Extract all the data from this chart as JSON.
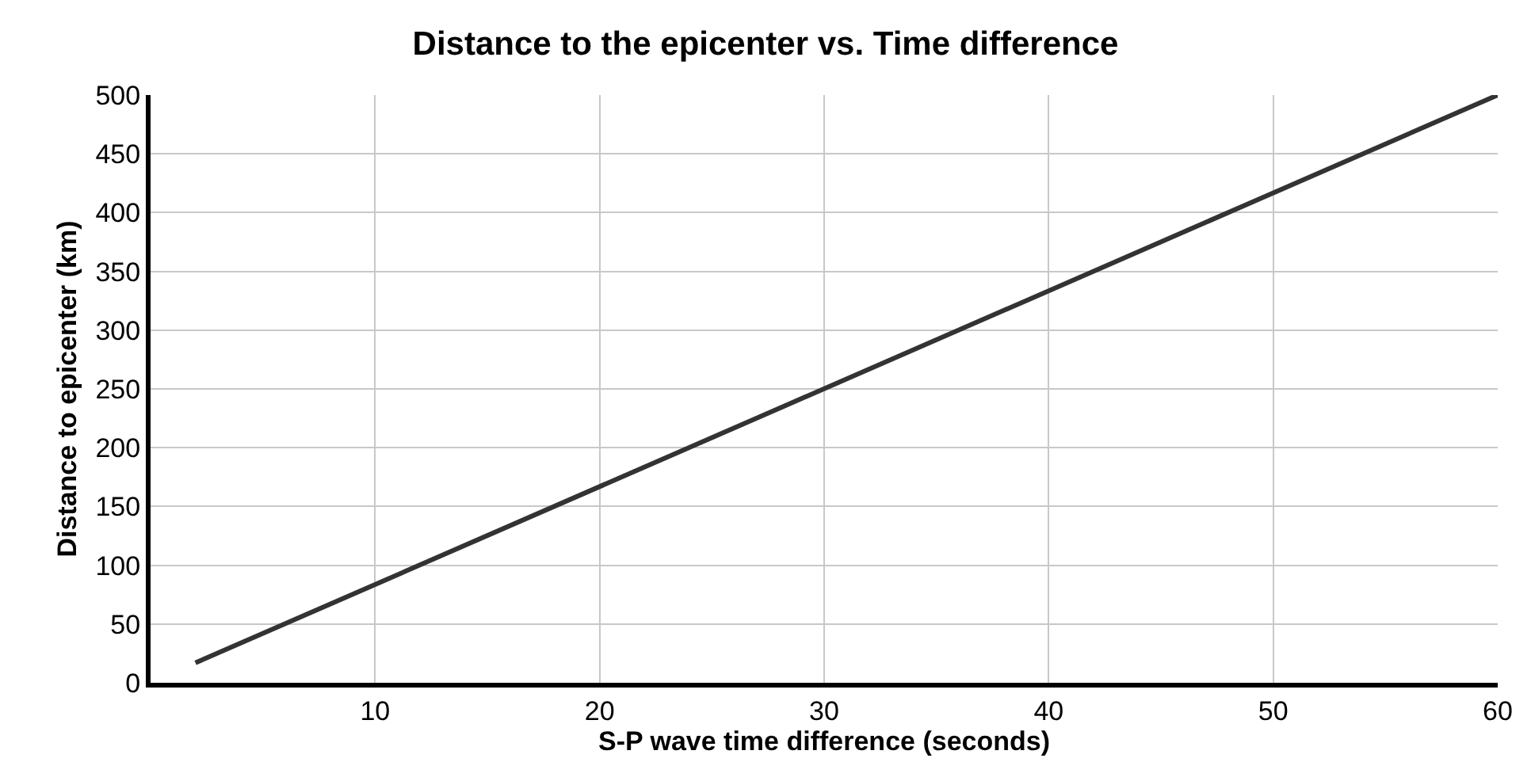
{
  "chart_data": {
    "type": "line",
    "title": "Distance to the epicenter vs. Time difference",
    "xlabel": "S-P wave time difference (seconds)",
    "ylabel": "Distance to epicenter (km)",
    "x": [
      2,
      60
    ],
    "series": [
      {
        "color": "#333333",
        "values": [
          17,
          500
        ]
      }
    ],
    "xlim": [
      0,
      60
    ],
    "xticks": [
      10,
      20,
      30,
      40,
      50,
      60
    ],
    "ylim": [
      0,
      500
    ],
    "yticks": [
      0,
      50,
      100,
      150,
      200,
      250,
      300,
      350,
      400,
      450,
      500
    ],
    "grid": true,
    "marker": "none",
    "line_style": "solid"
  }
}
